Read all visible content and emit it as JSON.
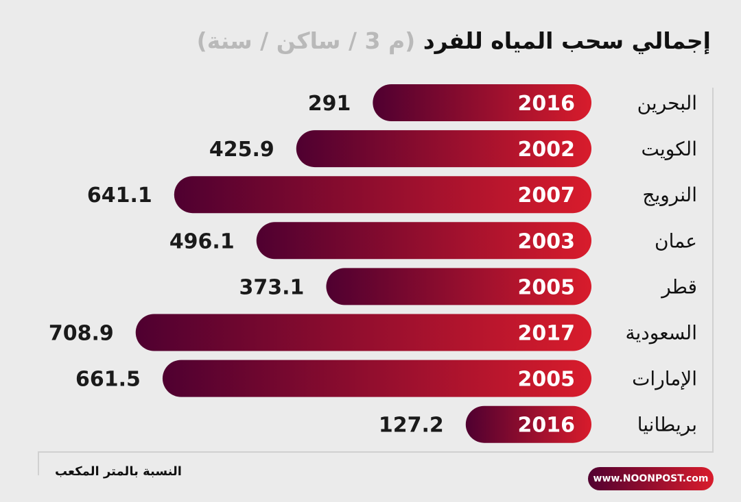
{
  "chart_data": {
    "type": "bar",
    "orientation": "horizontal",
    "title": "إجمالي سحب المياه للفرد",
    "unit": "(م 3 / ساكن / سنة)",
    "categories": [
      "البحرين",
      "الكويت",
      "النرويج",
      "عمان",
      "قطر",
      "السعودية",
      "الإمارات",
      "بريطانيا"
    ],
    "values": [
      291,
      425.9,
      641.1,
      496.1,
      373.1,
      708.9,
      661.5,
      127.2
    ],
    "value_labels": [
      "291",
      "425.9",
      "641.1",
      "496.1",
      "373.1",
      "708.9",
      "661.5",
      "127.2"
    ],
    "years": [
      "2016",
      "2002",
      "2007",
      "2003",
      "2005",
      "2017",
      "2005",
      "2016"
    ],
    "gradient": [
      "#4f0030",
      "#d81c2c"
    ],
    "grid": false
  },
  "footer": {
    "note": "النسبة بالمتر المكعب",
    "brand": "www.NOONPOST.com"
  }
}
